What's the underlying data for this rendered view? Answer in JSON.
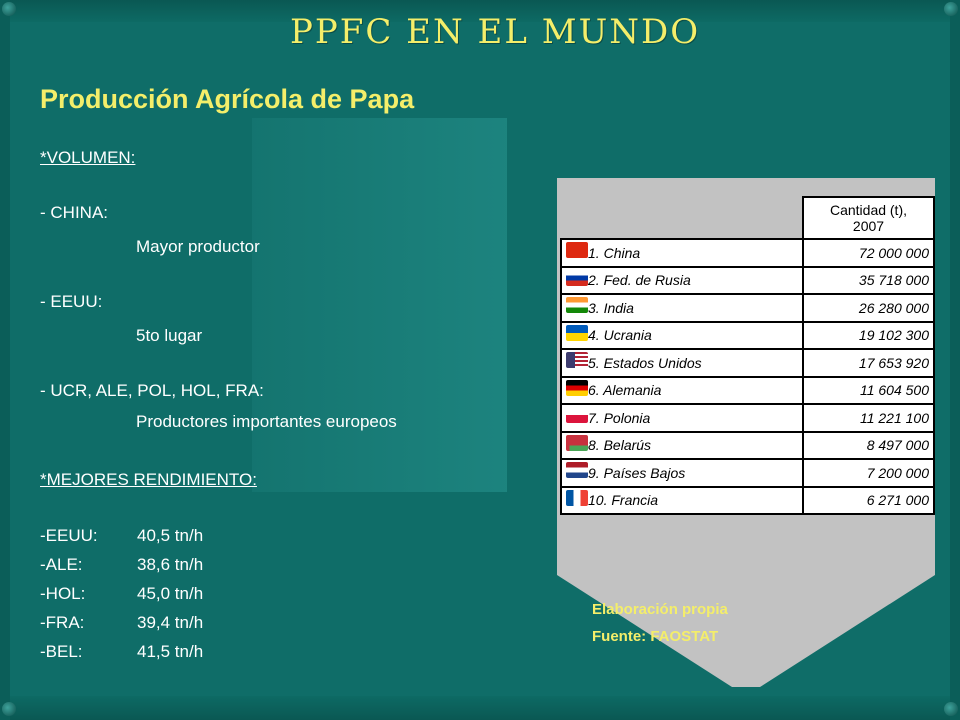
{
  "slide": {
    "header": "PPFC EN EL MUNDO",
    "subtitle": "Producción Agrícola de Papa"
  },
  "content": {
    "volumen_heading": "*VOLUMEN:",
    "china_label": "- CHINA:",
    "china_desc": "Mayor productor",
    "eeuu_label": "- EEUU:",
    "eeuu_desc": "5to lugar",
    "group_label": "- UCR, ALE, POL, HOL, FRA:",
    "group_desc": "Productores importantes europeos",
    "rend_heading": "*MEJORES RENDIMIENTO:",
    "yields": [
      {
        "country": "-EEUU:",
        "value": "40,5 tn/h"
      },
      {
        "country": "-ALE:",
        "value": "38,6 tn/h"
      },
      {
        "country": "-HOL:",
        "value": "45,0 tn/h"
      },
      {
        "country": "-FRA:",
        "value": "39,4 tn/h"
      },
      {
        "country": "-BEL:",
        "value": "41,5 tn/h"
      }
    ]
  },
  "table": {
    "header_line1": "Cantidad (t),",
    "header_line2": "2007",
    "rows": [
      {
        "rank": "1.",
        "country": "China",
        "value": "72 000 000",
        "flag": "china-flag"
      },
      {
        "rank": "2.",
        "country": "Fed. de Rusia",
        "value": "35 718 000",
        "flag": "russia-flag"
      },
      {
        "rank": "3.",
        "country": "India",
        "value": "26 280 000",
        "flag": "india-flag"
      },
      {
        "rank": "4.",
        "country": "Ucrania",
        "value": "19 102 300",
        "flag": "ukraine-flag"
      },
      {
        "rank": "5.",
        "country": "Estados Unidos",
        "value": "17 653 920",
        "flag": "usa-flag"
      },
      {
        "rank": "6.",
        "country": "Alemania",
        "value": "11 604 500",
        "flag": "germany-flag"
      },
      {
        "rank": "7.",
        "country": "Polonia",
        "value": "11 221 100",
        "flag": "poland-flag"
      },
      {
        "rank": "8.",
        "country": "Belarús",
        "value": "8 497 000",
        "flag": "belarus-flag"
      },
      {
        "rank": "9.",
        "country": "Países Bajos",
        "value": "7 200 000",
        "flag": "netherlands-flag"
      },
      {
        "rank": "10.",
        "country": "Francia",
        "value": "6 271 000",
        "flag": "france-flag"
      }
    ]
  },
  "notes": {
    "line1": "Elaboración propia",
    "line2": "Fuente: FAOSTAT"
  },
  "colors": {
    "background": "#0f6d68",
    "accent_yellow": "#f4ee6a",
    "panel_gray": "#c2c2c2"
  }
}
